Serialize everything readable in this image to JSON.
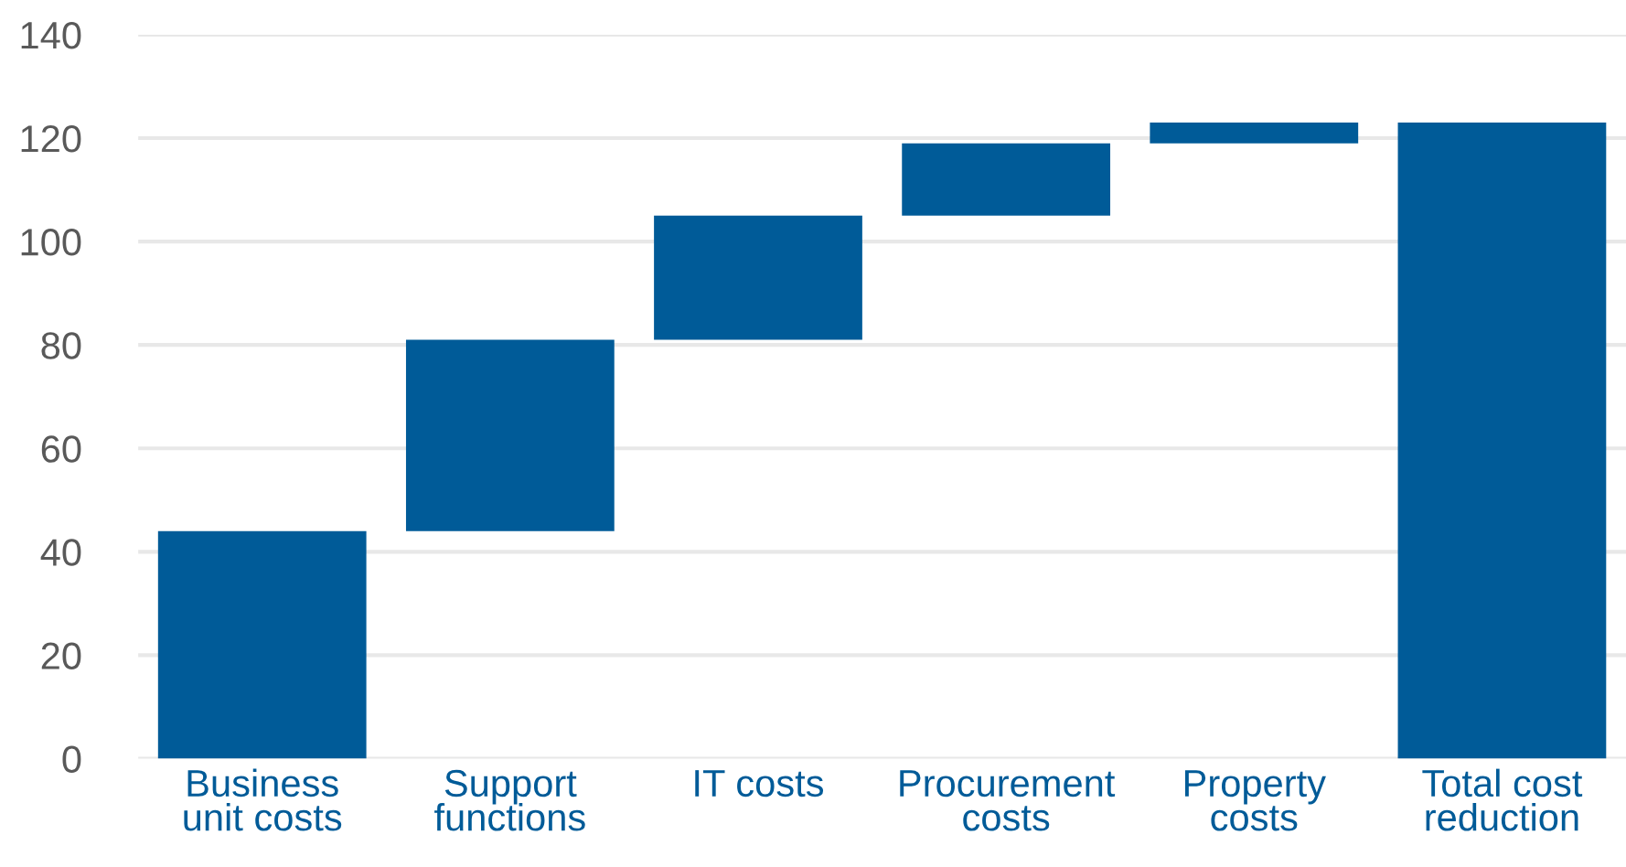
{
  "chart_data": {
    "type": "bar",
    "categories": [
      "Business\nunit costs",
      "Support\nfunctions",
      "IT costs",
      "Procurement\ncosts",
      "Property\ncosts",
      "Total cost\nreduction"
    ],
    "values": [
      44,
      37,
      24,
      14,
      4,
      123
    ],
    "base": [
      0,
      44,
      81,
      105,
      119,
      0
    ],
    "color": "#005b98",
    "ylim": [
      0,
      140
    ],
    "yticks": [
      0,
      20,
      40,
      60,
      80,
      100,
      120,
      140
    ],
    "grid": "y",
    "legend": false
  }
}
